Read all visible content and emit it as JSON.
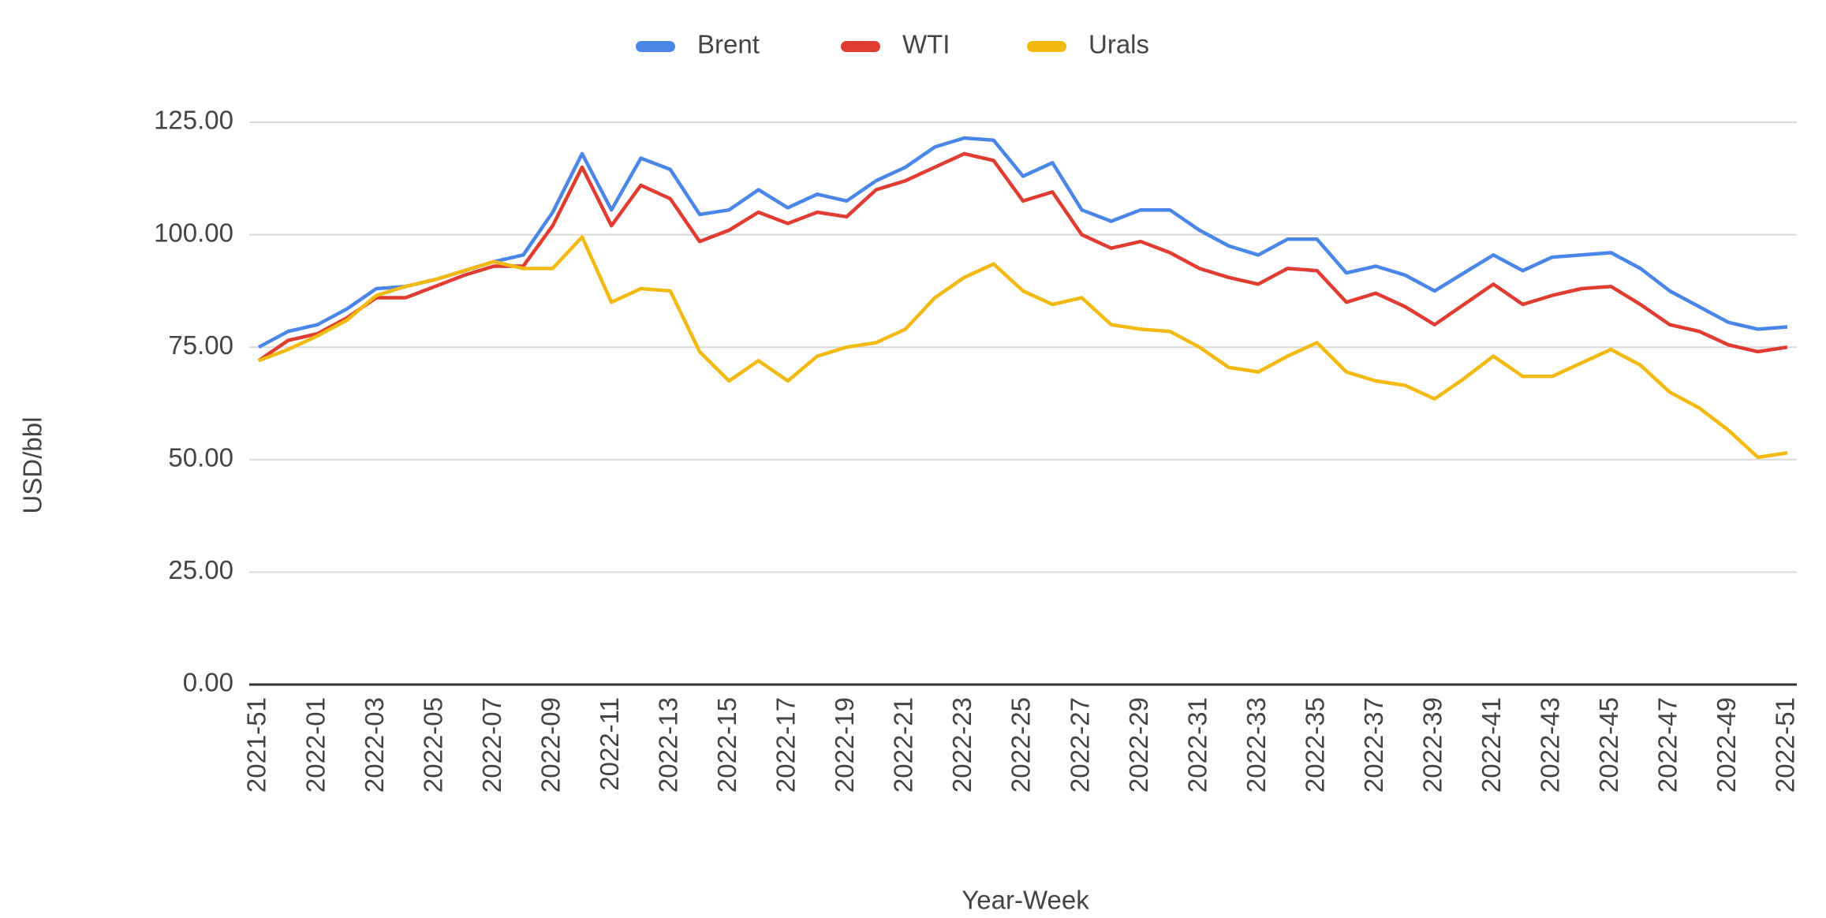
{
  "chart_data": {
    "type": "line",
    "x_label": "Year-Week",
    "y_label": "USD/bbl",
    "legend": "top",
    "grid": true,
    "categories": [
      "2021-51",
      null,
      "2022-01",
      null,
      "2022-03",
      null,
      "2022-05",
      null,
      "2022-07",
      null,
      "2022-09",
      null,
      "2022-11",
      null,
      "2022-13",
      null,
      "2022-15",
      null,
      "2022-17",
      null,
      "2022-19",
      null,
      "2022-21",
      null,
      "2022-23",
      null,
      "2022-25",
      null,
      "2022-27",
      null,
      "2022-29",
      null,
      "2022-31",
      null,
      "2022-33",
      null,
      "2022-35",
      null,
      "2022-37",
      null,
      "2022-39",
      null,
      "2022-41",
      null,
      "2022-43",
      null,
      "2022-45",
      null,
      "2022-47",
      null,
      "2022-49",
      null,
      "2022-51"
    ],
    "ylim": [
      0,
      125
    ],
    "yticks": [
      {
        "value": 0,
        "label": "0.00"
      },
      {
        "value": 25,
        "label": "25.00"
      },
      {
        "value": 50,
        "label": "50.00"
      },
      {
        "value": 75,
        "label": "75.00"
      },
      {
        "value": 100,
        "label": "100.00"
      },
      {
        "value": 125,
        "label": "125.00"
      }
    ],
    "series": [
      {
        "name": "Brent",
        "color": "#4a86e8",
        "values": [
          75,
          78.5,
          80,
          83.5,
          88,
          88.5,
          90,
          92,
          94,
          95.5,
          105,
          118,
          105.5,
          117,
          114.5,
          104.5,
          105.5,
          110,
          106,
          109,
          107.5,
          112,
          115,
          119.5,
          121.5,
          121,
          113,
          116,
          105.5,
          103,
          105.5,
          105.5,
          101,
          97.5,
          95.5,
          99,
          99,
          91.5,
          93,
          91,
          87.5,
          91.5,
          95.5,
          92,
          95,
          95.5,
          96,
          92.5,
          87.5,
          84,
          80.5,
          79,
          79.5
        ]
      },
      {
        "name": "WTI",
        "color": "#e03c31",
        "values": [
          72,
          76.5,
          78,
          81.5,
          86,
          86,
          88.5,
          91,
          93,
          93,
          102,
          115,
          102,
          111,
          108,
          98.5,
          101,
          105,
          102.5,
          105,
          104,
          110,
          112,
          115,
          118,
          116.5,
          107.5,
          109.5,
          100,
          97,
          98.5,
          96,
          92.5,
          90.5,
          89,
          92.5,
          92,
          85,
          87,
          84,
          80,
          84.5,
          89,
          84.5,
          86.5,
          88,
          88.5,
          84.5,
          80,
          78.5,
          75.5,
          74,
          75
        ]
      },
      {
        "name": "Urals",
        "color": "#f2b90f",
        "values": [
          72,
          74.5,
          77.5,
          81,
          86.5,
          88.5,
          90,
          92,
          94,
          92.5,
          92.5,
          99.5,
          85,
          88,
          87.5,
          74,
          67.5,
          72,
          67.5,
          73,
          75,
          76,
          79,
          86,
          90.5,
          93.5,
          87.5,
          84.5,
          86,
          80,
          79,
          78.5,
          75,
          70.5,
          69.5,
          73,
          76,
          69.5,
          67.5,
          66.5,
          63.5,
          68,
          73,
          68.5,
          68.5,
          71.5,
          74.5,
          71,
          65,
          61.5,
          56.5,
          50.5,
          51.5
        ]
      }
    ]
  }
}
